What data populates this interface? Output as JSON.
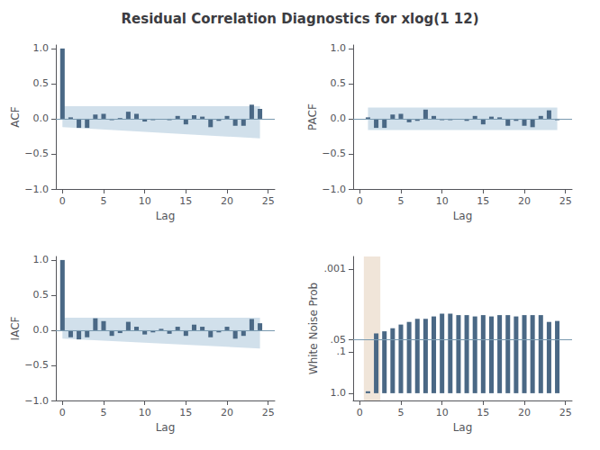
{
  "title": "Residual Correlation Diagnostics for xlog(1 12)",
  "chart_data": [
    {
      "type": "bar",
      "xlabel": "Lag",
      "ylabel": "ACF",
      "x": [
        0,
        1,
        2,
        3,
        4,
        5,
        6,
        7,
        8,
        9,
        10,
        11,
        12,
        13,
        14,
        15,
        16,
        17,
        18,
        19,
        20,
        21,
        22,
        23,
        24
      ],
      "values": [
        1.0,
        0.02,
        -0.13,
        -0.13,
        0.06,
        0.07,
        -0.02,
        0.01,
        0.1,
        0.07,
        -0.04,
        -0.02,
        0.0,
        -0.02,
        0.04,
        -0.08,
        0.05,
        0.03,
        -0.12,
        -0.03,
        0.04,
        -0.1,
        -0.1,
        0.2,
        0.14
      ],
      "color": "#4a6885",
      "xlim": [
        -0.8,
        25.8
      ],
      "ylim": [
        -1.0,
        1.05
      ],
      "xticks": [
        0,
        5,
        10,
        15,
        20,
        25
      ],
      "yticks": [
        {
          "value": -1.0,
          "label": "−1.0"
        },
        {
          "value": -0.5,
          "label": "−0.5"
        },
        {
          "value": 0.0,
          "label": "0.0"
        },
        0.5,
        {
          "value": 1.0,
          "label": "1.0"
        }
      ],
      "grid": false,
      "bands": [
        {
          "x": [
            0,
            24
          ],
          "lower": [
            -0.12,
            -0.28
          ],
          "upper": [
            0.18,
            0.18
          ],
          "color": "#b8cfe0"
        }
      ],
      "hlines": [
        {
          "y": 0,
          "color": "#7a9ab0"
        }
      ]
    },
    {
      "type": "bar",
      "xlabel": "Lag",
      "ylabel": "PACF",
      "x": [
        1,
        2,
        3,
        4,
        5,
        6,
        7,
        8,
        9,
        10,
        11,
        12,
        13,
        14,
        15,
        16,
        17,
        18,
        19,
        20,
        21,
        22,
        23,
        24
      ],
      "values": [
        0.02,
        -0.13,
        -0.13,
        0.06,
        0.07,
        -0.05,
        -0.03,
        0.13,
        0.04,
        -0.02,
        -0.02,
        0.0,
        -0.03,
        0.04,
        -0.08,
        0.03,
        0.02,
        -0.1,
        -0.03,
        -0.1,
        -0.12,
        0.04,
        0.12,
        -0.02
      ],
      "color": "#4a6885",
      "xlim": [
        -0.8,
        25.8
      ],
      "ylim": [
        -1.0,
        1.05
      ],
      "xticks": [
        0,
        5,
        10,
        15,
        20,
        25
      ],
      "yticks": [
        {
          "value": -1.0,
          "label": "−1.0"
        },
        {
          "value": -0.5,
          "label": "−0.5"
        },
        {
          "value": 0.0,
          "label": "0.0"
        },
        0.5,
        {
          "value": 1.0,
          "label": "1.0"
        }
      ],
      "grid": false,
      "bands": [
        {
          "x": [
            1,
            24
          ],
          "lower": [
            -0.16,
            -0.16
          ],
          "upper": [
            0.16,
            0.16
          ],
          "color": "#b8cfe0"
        }
      ],
      "hlines": [
        {
          "y": 0,
          "color": "#7a9ab0"
        }
      ]
    },
    {
      "type": "bar",
      "xlabel": "Lag",
      "ylabel": "IACF",
      "x": [
        0,
        1,
        2,
        3,
        4,
        5,
        6,
        7,
        8,
        9,
        10,
        11,
        12,
        13,
        14,
        15,
        16,
        17,
        18,
        19,
        20,
        21,
        22,
        23,
        24
      ],
      "values": [
        1.0,
        -0.1,
        -0.13,
        -0.1,
        0.17,
        0.13,
        -0.08,
        -0.04,
        0.12,
        0.05,
        -0.06,
        -0.03,
        0.02,
        -0.05,
        0.05,
        -0.08,
        0.08,
        0.05,
        -0.1,
        -0.03,
        0.05,
        -0.12,
        -0.08,
        0.16,
        0.1
      ],
      "color": "#4a6885",
      "xlim": [
        -0.8,
        25.8
      ],
      "ylim": [
        -1.0,
        1.05
      ],
      "xticks": [
        0,
        5,
        10,
        15,
        20,
        25
      ],
      "yticks": [
        {
          "value": -1.0,
          "label": "−1.0"
        },
        {
          "value": -0.5,
          "label": "−0.5"
        },
        {
          "value": 0.0,
          "label": "0.0"
        },
        0.5,
        {
          "value": 1.0,
          "label": "1.0"
        }
      ],
      "grid": false,
      "bands": [
        {
          "x": [
            0,
            24
          ],
          "lower": [
            -0.12,
            -0.26
          ],
          "upper": [
            0.18,
            0.18
          ],
          "color": "#b8cfe0"
        }
      ],
      "hlines": [
        {
          "y": 0,
          "color": "#7a9ab0"
        }
      ]
    },
    {
      "type": "bar",
      "xlabel": "Lag",
      "ylabel": "White Noise Prob",
      "x": [
        1,
        2,
        3,
        4,
        5,
        6,
        7,
        8,
        9,
        10,
        11,
        12,
        13,
        14,
        15,
        16,
        17,
        18,
        19,
        20,
        21,
        22,
        23,
        24
      ],
      "values": [
        0.9,
        0.036,
        0.032,
        0.027,
        0.022,
        0.019,
        0.016,
        0.016,
        0.014,
        0.012,
        0.012,
        0.013,
        0.013,
        0.014,
        0.013,
        0.014,
        0.013,
        0.013,
        0.014,
        0.013,
        0.013,
        0.013,
        0.019,
        0.018
      ],
      "color": "#4a6885",
      "log": "y",
      "xlim": [
        -0.8,
        25.8
      ],
      "ylim": [
        1.5,
        0.0005
      ],
      "xticks": [
        0,
        5,
        10,
        15,
        20,
        25
      ],
      "yticks": [
        {
          "value": 0.001,
          "label": ".001"
        },
        {
          "value": 0.05,
          "label": ".05"
        },
        {
          "value": 0.1,
          "label": ".1"
        },
        {
          "value": 1.0,
          "label": "1.0"
        }
      ],
      "grid": false,
      "vspans": [
        {
          "x": [
            0.5,
            2.5
          ],
          "color": "#ecdfd0"
        }
      ],
      "hlines": [
        {
          "y": 0.05,
          "color": "#7a9ab0"
        }
      ]
    }
  ]
}
